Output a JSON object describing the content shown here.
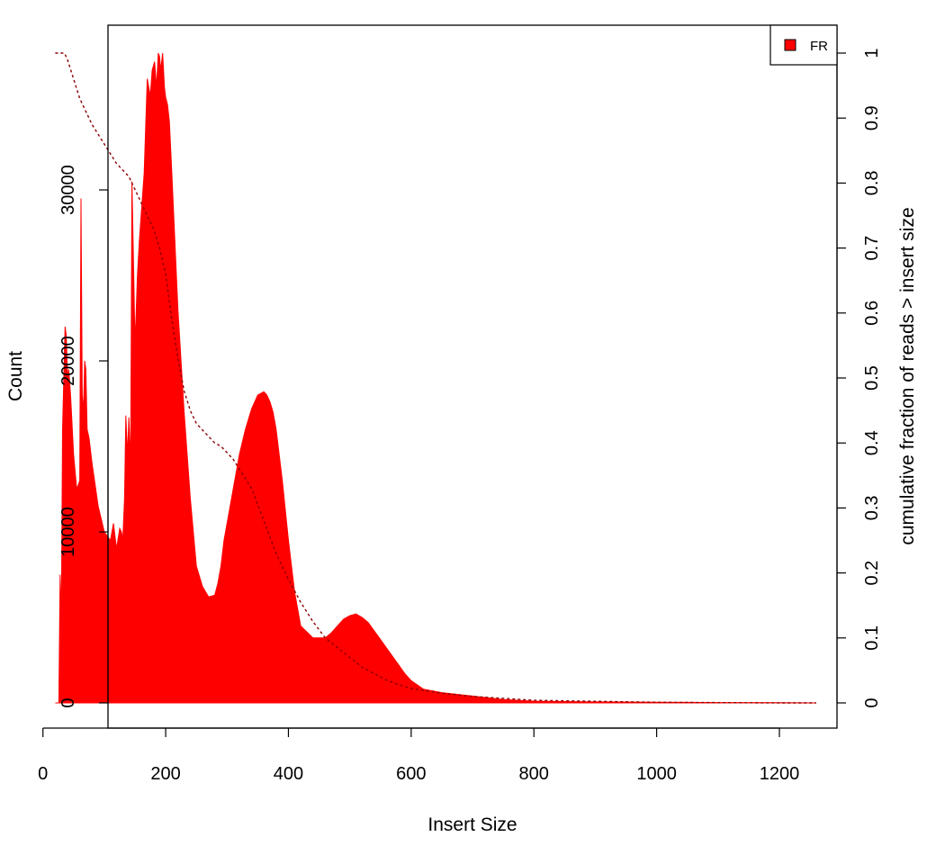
{
  "chart_data": {
    "type": "area",
    "title": "",
    "xlabel": "Insert Size",
    "ylabel": "Count",
    "y2label": "cumulative fraction of reads > insert size",
    "xlim": [
      0,
      1300
    ],
    "ylim": [
      0,
      38000
    ],
    "y2lim": [
      0,
      1
    ],
    "xticks": [
      0,
      200,
      400,
      600,
      800,
      1000,
      1200
    ],
    "yticks": [
      0,
      10000,
      20000,
      30000
    ],
    "y2ticks": [
      0,
      0.1,
      0.2,
      0.3,
      0.4,
      0.5,
      0.6,
      0.7,
      0.8,
      0.9,
      1
    ],
    "grid": false,
    "legend": {
      "position": "top-right",
      "entries": [
        {
          "label": "FR",
          "color": "#ff0000"
        }
      ]
    },
    "colors": {
      "histogram": "#ff0000",
      "cumulative": "#8b0000",
      "frame": "#000000"
    },
    "series": [
      {
        "name": "FR",
        "type": "area",
        "x": [
          20,
          26,
          28,
          30,
          32,
          34,
          36,
          38,
          40,
          42,
          45,
          50,
          55,
          58,
          60,
          62,
          64,
          66,
          68,
          70,
          72,
          75,
          80,
          90,
          100,
          110,
          115,
          120,
          125,
          128,
          130,
          133,
          135,
          138,
          140,
          143,
          145,
          148,
          150,
          152,
          154,
          157,
          160,
          165,
          170,
          175,
          178,
          182,
          185,
          188,
          190,
          192,
          195,
          198,
          200,
          203,
          206,
          210,
          215,
          220,
          230,
          240,
          250,
          260,
          270,
          280,
          285,
          290,
          295,
          300,
          310,
          320,
          330,
          340,
          350,
          360,
          365,
          370,
          375,
          380,
          390,
          400,
          410,
          420,
          440,
          460,
          470,
          480,
          490,
          500,
          510,
          520,
          530,
          540,
          550,
          560,
          570,
          580,
          590,
          600,
          620,
          650,
          700,
          750,
          800,
          900,
          1000,
          1100,
          1200,
          1260
        ],
        "values": [
          0,
          0,
          7500,
          5000,
          16000,
          19000,
          22000,
          21500,
          19000,
          19500,
          18000,
          14500,
          12500,
          12800,
          13000,
          29500,
          18000,
          17000,
          20000,
          19500,
          16000,
          15500,
          14000,
          11500,
          10000,
          9500,
          10500,
          9000,
          10200,
          10000,
          9500,
          12000,
          16800,
          14500,
          16700,
          14000,
          30500,
          25000,
          21000,
          23000,
          25000,
          27000,
          28500,
          31000,
          36500,
          35500,
          37000,
          37500,
          36000,
          38000,
          37800,
          37000,
          38000,
          36000,
          35400,
          35000,
          34000,
          31000,
          27000,
          23000,
          17000,
          12000,
          8000,
          6800,
          6200,
          6300,
          7000,
          8000,
          9500,
          10500,
          12500,
          14500,
          16000,
          17200,
          18000,
          18200,
          18000,
          17600,
          17000,
          16000,
          13000,
          9500,
          6500,
          4500,
          3800,
          3800,
          4100,
          4500,
          4900,
          5100,
          5200,
          5000,
          4700,
          4200,
          3700,
          3200,
          2700,
          2200,
          1700,
          1300,
          800,
          600,
          400,
          200,
          100,
          60,
          40,
          20,
          10,
          0
        ]
      },
      {
        "name": "cumulative",
        "type": "line",
        "style": "dashed",
        "axis": "right",
        "x": [
          20,
          35,
          40,
          60,
          80,
          100,
          120,
          140,
          150,
          160,
          170,
          180,
          190,
          200,
          210,
          220,
          230,
          240,
          250,
          260,
          270,
          280,
          290,
          300,
          310,
          320,
          340,
          360,
          380,
          400,
          420,
          440,
          460,
          480,
          500,
          520,
          540,
          560,
          580,
          600,
          650,
          700,
          800,
          1000,
          1200,
          1260
        ],
        "values": [
          1.0,
          1.0,
          0.99,
          0.93,
          0.89,
          0.86,
          0.83,
          0.81,
          0.79,
          0.77,
          0.75,
          0.73,
          0.7,
          0.66,
          0.59,
          0.53,
          0.48,
          0.45,
          0.43,
          0.42,
          0.41,
          0.4,
          0.395,
          0.385,
          0.375,
          0.36,
          0.33,
          0.28,
          0.23,
          0.19,
          0.155,
          0.125,
          0.1,
          0.085,
          0.07,
          0.055,
          0.045,
          0.035,
          0.028,
          0.022,
          0.015,
          0.01,
          0.004,
          0.001,
          0.0,
          0.0
        ]
      }
    ]
  }
}
